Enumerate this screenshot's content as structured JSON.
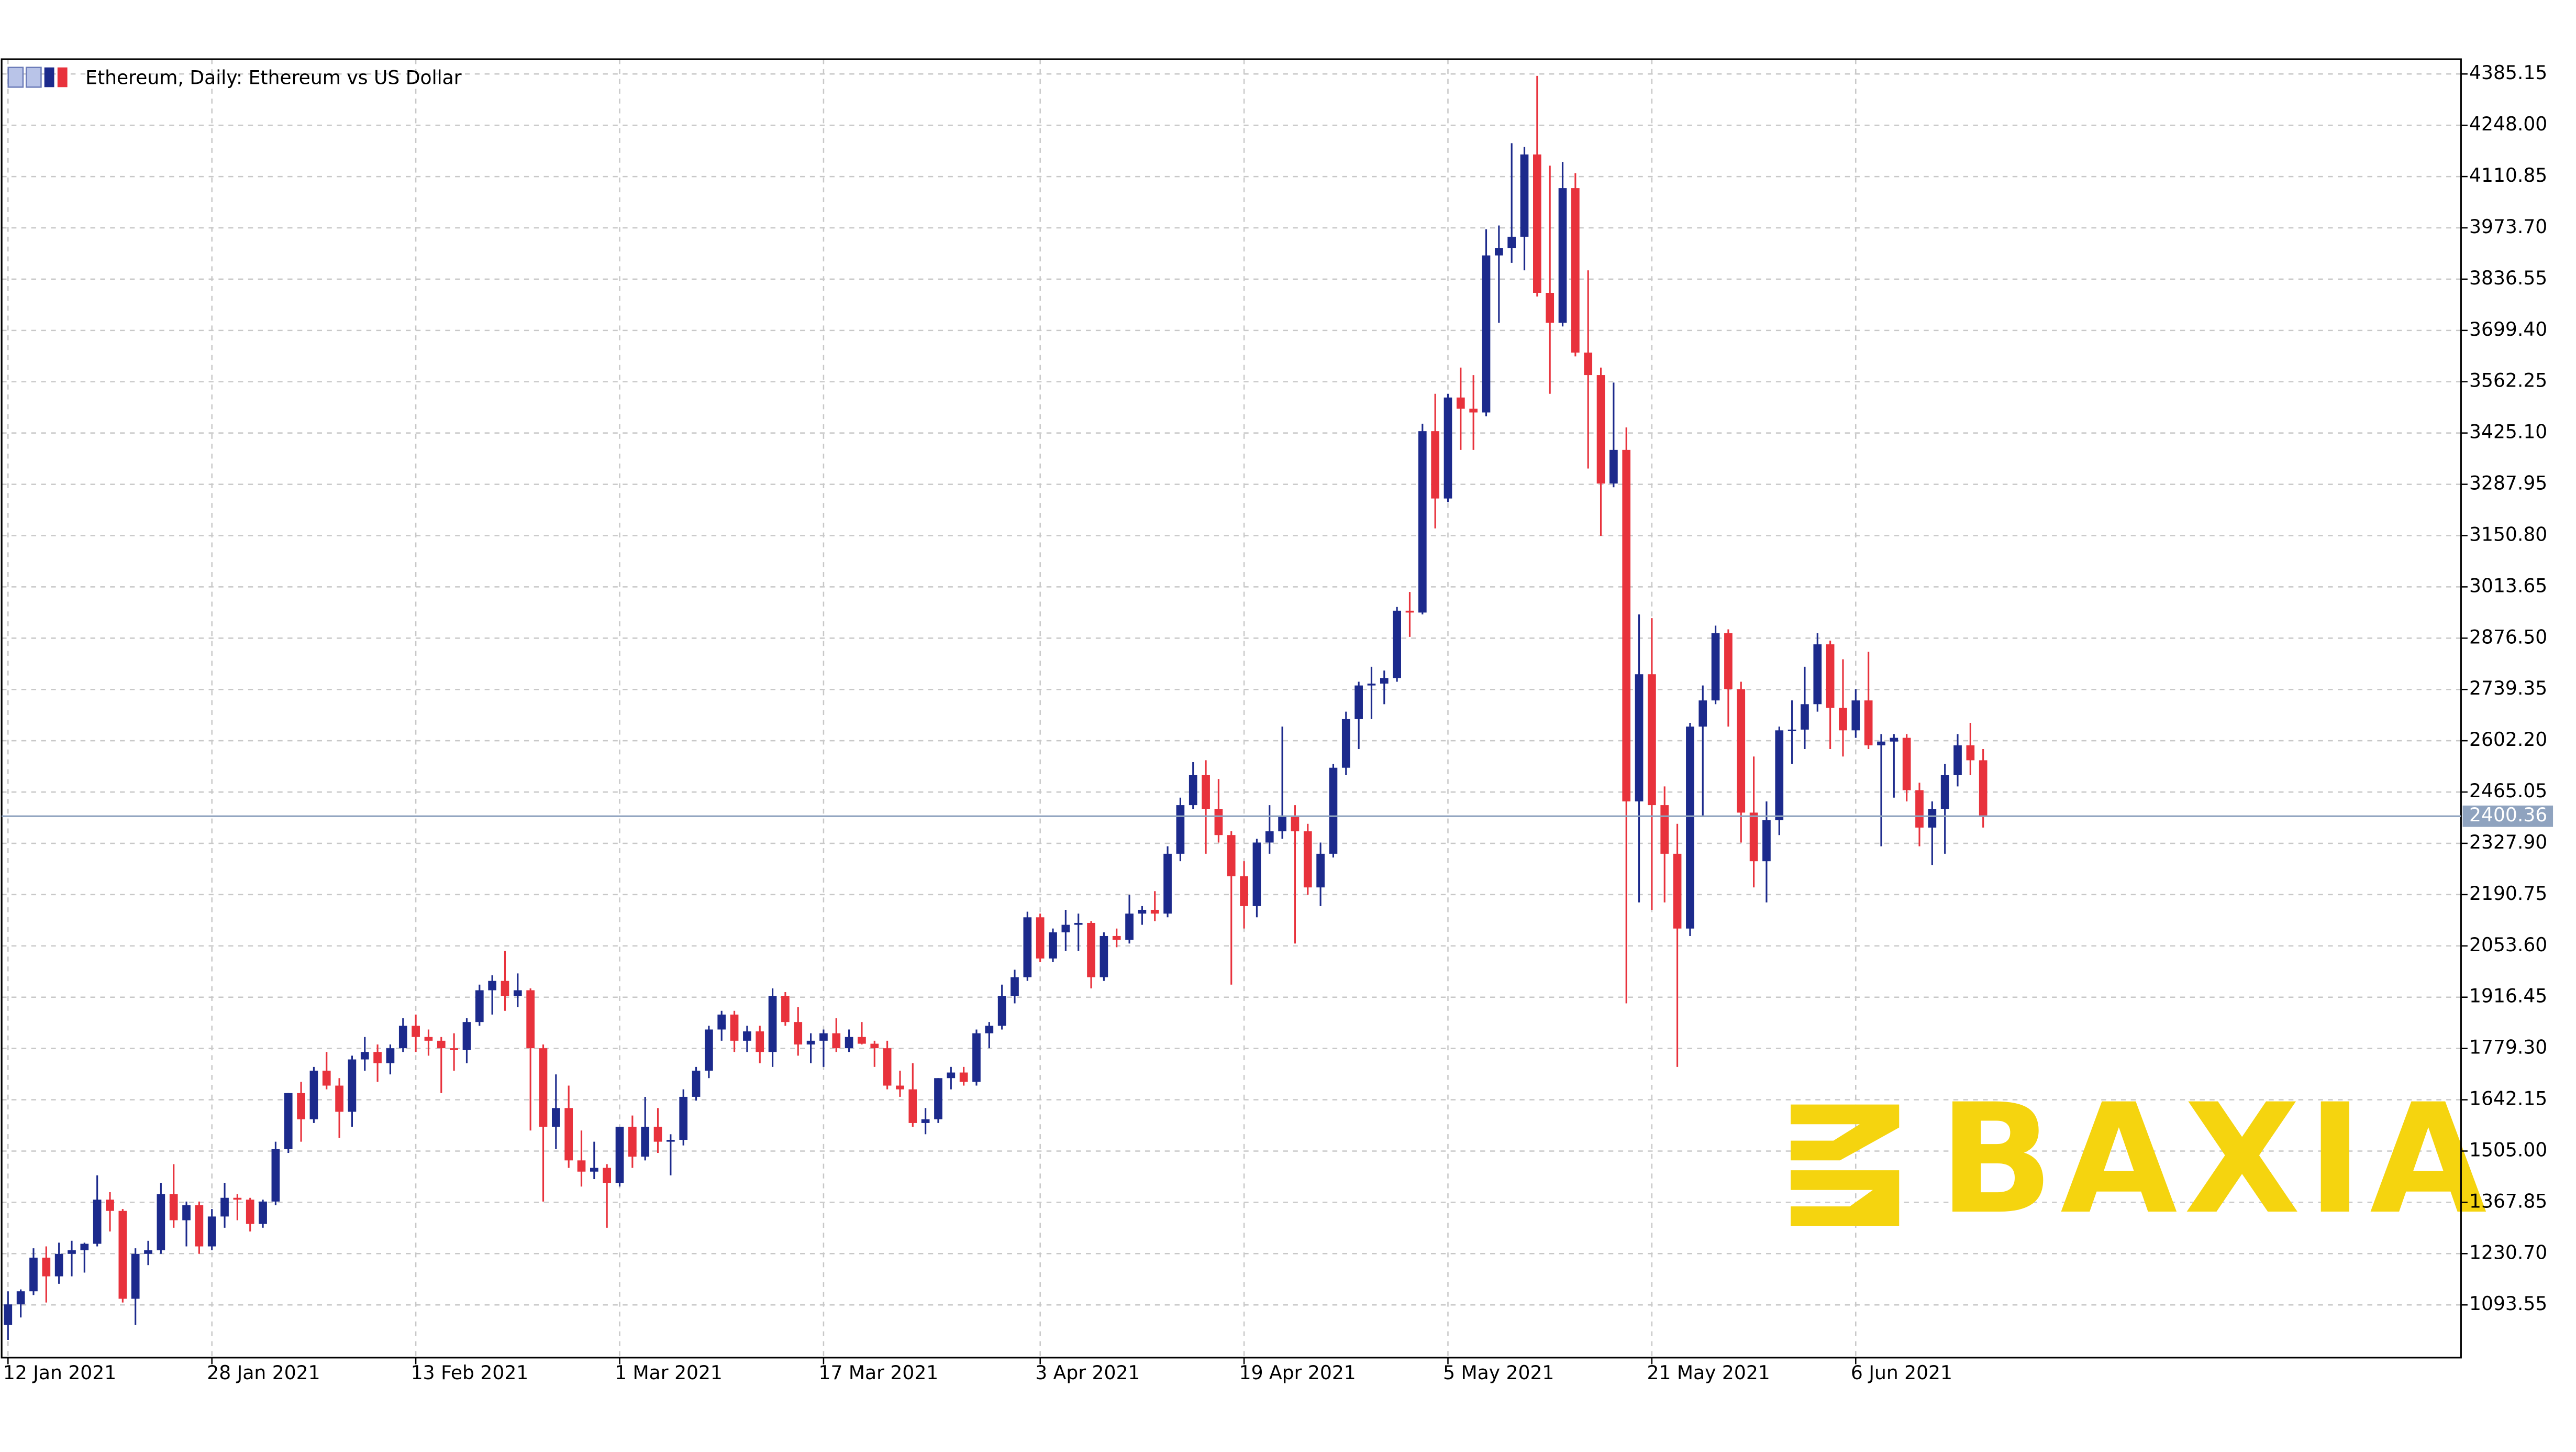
{
  "chart_data": {
    "type": "candlestick",
    "title": "Ethereum, Daily:  Ethereum vs US Dollar",
    "watermark": "BAXIA",
    "up_color": "#1c2a8c",
    "down_color": "#e8323c",
    "grid": true,
    "last_price": 2400.36,
    "xlim": [
      -0.5,
      192.5
    ],
    "ylim": [
      952.6,
      4424.7
    ],
    "open": [
      1040,
      1095,
      1130,
      1220,
      1170,
      1230,
      1240,
      1257,
      1375,
      1345,
      1110,
      1230,
      1240,
      1390,
      1320,
      1360,
      1250,
      1330,
      1380,
      1375,
      1310,
      1370,
      1510,
      1660,
      1590,
      1720,
      1680,
      1610,
      1750,
      1770,
      1740,
      1780,
      1840,
      1810,
      1800,
      1780,
      1775,
      1850,
      1935,
      1960,
      1920,
      1935,
      1780,
      1570,
      1620,
      1480,
      1450,
      1460,
      1420,
      1570,
      1490,
      1570,
      1530,
      1535,
      1650,
      1720,
      1830,
      1870,
      1800,
      1825,
      1770,
      1920,
      1850,
      1790,
      1800,
      1820,
      1780,
      1810,
      1792,
      1780,
      1680,
      1670,
      1580,
      1590,
      1700,
      1715,
      1690,
      1820,
      1840,
      1920,
      1970,
      2130,
      2020,
      2090,
      2110,
      2115,
      1970,
      2080,
      2070,
      2140,
      2150,
      2140,
      2300,
      2430,
      2510,
      2420,
      2350,
      2240,
      2160,
      2330,
      2360,
      2400,
      2360,
      2210,
      2300,
      2530,
      2660,
      2750,
      2755,
      2770,
      2950,
      2945,
      3430,
      3250,
      3520,
      3490,
      3480,
      3900,
      3920,
      3950,
      4170,
      3800,
      3720,
      4080,
      3640,
      3580,
      3290,
      3380,
      2440,
      2780,
      2430,
      2300,
      2100,
      2640,
      2710,
      2890,
      2740,
      2410,
      2280,
      2390,
      2630,
      2632,
      2700,
      2860,
      2690,
      2630,
      2710,
      2590,
      2600,
      2610,
      2470,
      2370,
      2420,
      2510,
      2590,
      2550
    ],
    "high": [
      1130,
      1135,
      1245,
      1250,
      1260,
      1265,
      1260,
      1440,
      1395,
      1350,
      1245,
      1265,
      1420,
      1470,
      1370,
      1370,
      1350,
      1420,
      1390,
      1380,
      1375,
      1530,
      1660,
      1690,
      1730,
      1770,
      1700,
      1760,
      1810,
      1790,
      1790,
      1860,
      1870,
      1830,
      1810,
      1820,
      1860,
      1950,
      1975,
      2040,
      1980,
      1940,
      1790,
      1710,
      1680,
      1560,
      1530,
      1470,
      1570,
      1600,
      1650,
      1620,
      1550,
      1670,
      1730,
      1840,
      1880,
      1880,
      1840,
      1840,
      1940,
      1930,
      1890,
      1820,
      1830,
      1860,
      1830,
      1850,
      1800,
      1800,
      1720,
      1740,
      1620,
      1700,
      1730,
      1730,
      1830,
      1850,
      1950,
      1990,
      2145,
      2140,
      2100,
      2150,
      2140,
      2120,
      2090,
      2100,
      2190,
      2160,
      2200,
      2320,
      2450,
      2545,
      2550,
      2500,
      2360,
      2280,
      2340,
      2430,
      2640,
      2430,
      2380,
      2330,
      2540,
      2680,
      2760,
      2800,
      2790,
      2960,
      3000,
      3450,
      3530,
      3530,
      3600,
      3580,
      3970,
      3980,
      4200,
      4190,
      4380,
      4140,
      4150,
      4120,
      3860,
      3600,
      3560,
      3440,
      2940,
      2930,
      2480,
      2380,
      2650,
      2750,
      2910,
      2900,
      2760,
      2560,
      2440,
      2640,
      2710,
      2800,
      2890,
      2870,
      2820,
      2740,
      2840,
      2620,
      2620,
      2620,
      2490,
      2440,
      2540,
      2620,
      2650,
      2580
    ],
    "low": [
      1000,
      1060,
      1120,
      1100,
      1150,
      1170,
      1180,
      1250,
      1290,
      1100,
      1040,
      1200,
      1230,
      1300,
      1250,
      1230,
      1240,
      1300,
      1320,
      1290,
      1300,
      1360,
      1500,
      1530,
      1580,
      1670,
      1540,
      1570,
      1720,
      1690,
      1710,
      1770,
      1770,
      1760,
      1660,
      1720,
      1740,
      1840,
      1870,
      1880,
      1890,
      1560,
      1370,
      1510,
      1460,
      1410,
      1430,
      1300,
      1410,
      1460,
      1480,
      1500,
      1440,
      1520,
      1640,
      1700,
      1800,
      1770,
      1770,
      1740,
      1730,
      1840,
      1760,
      1740,
      1730,
      1770,
      1770,
      1790,
      1730,
      1670,
      1650,
      1570,
      1550,
      1580,
      1670,
      1680,
      1680,
      1780,
      1830,
      1900,
      1960,
      2010,
      2010,
      2040,
      2040,
      1940,
      1960,
      2050,
      2060,
      2110,
      2120,
      2130,
      2280,
      2420,
      2300,
      2330,
      1950,
      2100,
      2130,
      2300,
      2340,
      2060,
      2190,
      2160,
      2290,
      2510,
      2580,
      2660,
      2700,
      2760,
      2880,
      2940,
      3170,
      3240,
      3380,
      3380,
      3470,
      3720,
      3880,
      3860,
      3790,
      3530,
      3710,
      3630,
      3330,
      3150,
      3280,
      1900,
      2170,
      2150,
      2170,
      1730,
      2080,
      2400,
      2700,
      2640,
      2330,
      2210,
      2170,
      2350,
      2540,
      2580,
      2680,
      2580,
      2560,
      2610,
      2580,
      2320,
      2450,
      2440,
      2320,
      2270,
      2300,
      2480,
      2510,
      2370
    ],
    "close": [
      1095,
      1130,
      1220,
      1170,
      1230,
      1240,
      1257,
      1375,
      1345,
      1110,
      1230,
      1240,
      1390,
      1320,
      1360,
      1250,
      1330,
      1380,
      1375,
      1310,
      1370,
      1510,
      1660,
      1590,
      1720,
      1680,
      1610,
      1750,
      1770,
      1740,
      1780,
      1840,
      1810,
      1800,
      1780,
      1775,
      1850,
      1935,
      1960,
      1920,
      1935,
      1780,
      1570,
      1620,
      1480,
      1450,
      1460,
      1420,
      1570,
      1490,
      1570,
      1530,
      1535,
      1650,
      1720,
      1830,
      1870,
      1800,
      1825,
      1770,
      1920,
      1850,
      1790,
      1800,
      1820,
      1780,
      1810,
      1792,
      1780,
      1680,
      1670,
      1580,
      1590,
      1700,
      1715,
      1690,
      1820,
      1840,
      1920,
      1970,
      2130,
      2020,
      2090,
      2110,
      2115,
      1970,
      2080,
      2070,
      2140,
      2150,
      2140,
      2300,
      2430,
      2510,
      2420,
      2350,
      2240,
      2160,
      2330,
      2360,
      2400,
      2360,
      2210,
      2300,
      2530,
      2660,
      2750,
      2755,
      2770,
      2950,
      2945,
      3430,
      3250,
      3520,
      3490,
      3480,
      3900,
      3920,
      3950,
      4170,
      3800,
      3720,
      4080,
      3640,
      3580,
      3290,
      3380,
      2440,
      2780,
      2430,
      2300,
      2100,
      2640,
      2710,
      2890,
      2740,
      2410,
      2280,
      2390,
      2630,
      2632,
      2700,
      2860,
      2690,
      2630,
      2710,
      2590,
      2600,
      2610,
      2470,
      2370,
      2420,
      2510,
      2590,
      2550,
      2400.36
    ],
    "xticks": [
      {
        "value": 0,
        "label": "12 Jan 2021"
      },
      {
        "value": 16,
        "label": "28 Jan 2021"
      },
      {
        "value": 32,
        "label": "13 Feb 2021"
      },
      {
        "value": 48,
        "label": "1 Mar 2021"
      },
      {
        "value": 64,
        "label": "17 Mar 2021"
      },
      {
        "value": 81,
        "label": "3 Apr 2021"
      },
      {
        "value": 97,
        "label": "19 Apr 2021"
      },
      {
        "value": 113,
        "label": "5 May 2021"
      },
      {
        "value": 129,
        "label": "21 May 2021"
      },
      {
        "value": 145,
        "label": "6 Jun 2021"
      }
    ],
    "yticks": [
      {
        "value": 1093.55,
        "label": "1093.55"
      },
      {
        "value": 1230.7,
        "label": "1230.70"
      },
      {
        "value": 1367.85,
        "label": "1367.85"
      },
      {
        "value": 1505,
        "label": "1505.00"
      },
      {
        "value": 1642.15,
        "label": "1642.15"
      },
      {
        "value": 1779.3,
        "label": "1779.30"
      },
      {
        "value": 1916.45,
        "label": "1916.45"
      },
      {
        "value": 2053.6,
        "label": "2053.60"
      },
      {
        "value": 2190.75,
        "label": "2190.75"
      },
      {
        "value": 2327.9,
        "label": "2327.90"
      },
      {
        "value": 2465.05,
        "label": "2465.05"
      },
      {
        "value": 2602.2,
        "label": "2602.20"
      },
      {
        "value": 2739.35,
        "label": "2739.35"
      },
      {
        "value": 2876.5,
        "label": "2876.50"
      },
      {
        "value": 3013.65,
        "label": "3013.65"
      },
      {
        "value": 3150.8,
        "label": "3150.80"
      },
      {
        "value": 3287.95,
        "label": "3287.95"
      },
      {
        "value": 3425.1,
        "label": "3425.10"
      },
      {
        "value": 3562.25,
        "label": "3562.25"
      },
      {
        "value": 3699.4,
        "label": "3699.40"
      },
      {
        "value": 3836.55,
        "label": "3836.55"
      },
      {
        "value": 3973.7,
        "label": "3973.70"
      },
      {
        "value": 4110.85,
        "label": "4110.85"
      },
      {
        "value": 4248,
        "label": "4248.00"
      },
      {
        "value": 4385.15,
        "label": "4385.15"
      }
    ]
  }
}
